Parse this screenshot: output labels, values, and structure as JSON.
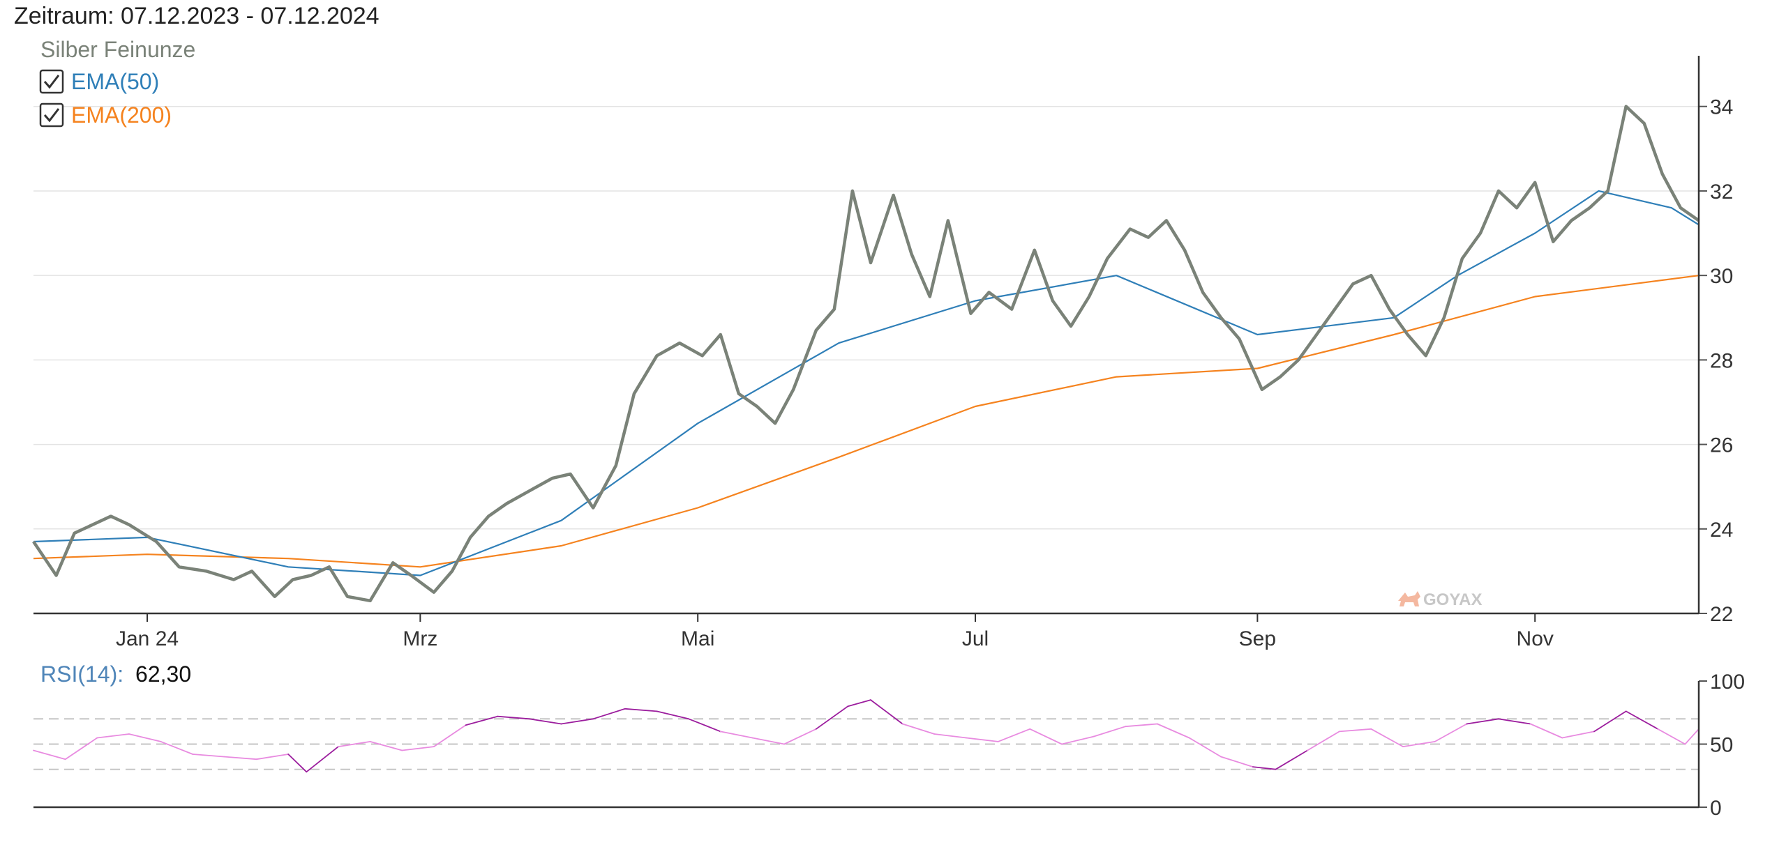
{
  "header": {
    "zeitraum_label": "Zeitraum:",
    "zeitraum_value": "07.12.2023 - 07.12.2024"
  },
  "legend": {
    "series_label": "Silber Feinunze",
    "items": [
      {
        "label": "EMA(50)",
        "checked": true,
        "color": "#2f7fb8"
      },
      {
        "label": "EMA(200)",
        "checked": true,
        "color": "#f5831f"
      }
    ]
  },
  "watermark": "GOYAX",
  "rsi": {
    "label": "RSI(14):",
    "value": "62,30",
    "color": "#e88be0",
    "extreme_color": "#9c1e9e"
  },
  "colors": {
    "price": "#7a8278",
    "ema50": "#2f7fb8",
    "ema200": "#f5831f",
    "grid": "#e3e3e3",
    "axis": "#555555"
  },
  "chart_data": [
    {
      "type": "line",
      "title": "Silber Feinunze",
      "x_ticks": [
        "Jan 24",
        "Mrz",
        "Mai",
        "Jul",
        "Sep",
        "Nov"
      ],
      "x_tick_dates": [
        "2024-01-01",
        "2024-03-01",
        "2024-05-01",
        "2024-07-01",
        "2024-09-01",
        "2024-11-01"
      ],
      "xlim": [
        "2023-12-07",
        "2024-12-07"
      ],
      "ylim": [
        22,
        35.2
      ],
      "y_ticks": [
        22,
        24,
        26,
        28,
        30,
        32,
        34
      ],
      "grid": true,
      "y_axis_side": "right",
      "series": [
        {
          "name": "Silber Feinunze",
          "points": [
            [
              "2023-12-07",
              23.7
            ],
            [
              "2023-12-12",
              22.9
            ],
            [
              "2023-12-16",
              23.9
            ],
            [
              "2023-12-20",
              24.1
            ],
            [
              "2023-12-24",
              24.3
            ],
            [
              "2023-12-28",
              24.1
            ],
            [
              "2024-01-03",
              23.7
            ],
            [
              "2024-01-08",
              23.1
            ],
            [
              "2024-01-14",
              23.0
            ],
            [
              "2024-01-20",
              22.8
            ],
            [
              "2024-01-24",
              23.0
            ],
            [
              "2024-01-29",
              22.4
            ],
            [
              "2024-02-02",
              22.8
            ],
            [
              "2024-02-06",
              22.9
            ],
            [
              "2024-02-10",
              23.1
            ],
            [
              "2024-02-14",
              22.4
            ],
            [
              "2024-02-19",
              22.3
            ],
            [
              "2024-02-24",
              23.2
            ],
            [
              "2024-02-28",
              22.9
            ],
            [
              "2024-03-04",
              22.5
            ],
            [
              "2024-03-08",
              23.0
            ],
            [
              "2024-03-12",
              23.8
            ],
            [
              "2024-03-16",
              24.3
            ],
            [
              "2024-03-20",
              24.6
            ],
            [
              "2024-03-25",
              24.9
            ],
            [
              "2024-03-30",
              25.2
            ],
            [
              "2024-04-03",
              25.3
            ],
            [
              "2024-04-08",
              24.5
            ],
            [
              "2024-04-13",
              25.5
            ],
            [
              "2024-04-17",
              27.2
            ],
            [
              "2024-04-22",
              28.1
            ],
            [
              "2024-04-27",
              28.4
            ],
            [
              "2024-05-02",
              28.1
            ],
            [
              "2024-05-06",
              28.6
            ],
            [
              "2024-05-10",
              27.2
            ],
            [
              "2024-05-14",
              26.9
            ],
            [
              "2024-05-18",
              26.5
            ],
            [
              "2024-05-22",
              27.3
            ],
            [
              "2024-05-27",
              28.7
            ],
            [
              "2024-05-31",
              29.2
            ],
            [
              "2024-06-04",
              32.0
            ],
            [
              "2024-06-08",
              30.3
            ],
            [
              "2024-06-13",
              31.9
            ],
            [
              "2024-06-17",
              30.5
            ],
            [
              "2024-06-21",
              29.5
            ],
            [
              "2024-06-25",
              31.3
            ],
            [
              "2024-06-30",
              29.1
            ],
            [
              "2024-07-04",
              29.6
            ],
            [
              "2024-07-09",
              29.2
            ],
            [
              "2024-07-14",
              30.6
            ],
            [
              "2024-07-18",
              29.4
            ],
            [
              "2024-07-22",
              28.8
            ],
            [
              "2024-07-26",
              29.5
            ],
            [
              "2024-07-30",
              30.4
            ],
            [
              "2024-08-04",
              31.1
            ],
            [
              "2024-08-08",
              30.9
            ],
            [
              "2024-08-12",
              31.3
            ],
            [
              "2024-08-16",
              30.6
            ],
            [
              "2024-08-20",
              29.6
            ],
            [
              "2024-08-24",
              29.0
            ],
            [
              "2024-08-28",
              28.5
            ],
            [
              "2024-09-02",
              27.3
            ],
            [
              "2024-09-06",
              27.6
            ],
            [
              "2024-09-10",
              28.0
            ],
            [
              "2024-09-14",
              28.6
            ],
            [
              "2024-09-18",
              29.2
            ],
            [
              "2024-09-22",
              29.8
            ],
            [
              "2024-09-26",
              30.0
            ],
            [
              "2024-09-30",
              29.2
            ],
            [
              "2024-10-04",
              28.6
            ],
            [
              "2024-10-08",
              28.1
            ],
            [
              "2024-10-12",
              29.0
            ],
            [
              "2024-10-16",
              30.4
            ],
            [
              "2024-10-20",
              31.0
            ],
            [
              "2024-10-24",
              32.0
            ],
            [
              "2024-10-28",
              31.6
            ],
            [
              "2024-11-01",
              32.2
            ],
            [
              "2024-11-05",
              30.8
            ],
            [
              "2024-11-09",
              31.3
            ],
            [
              "2024-11-13",
              31.6
            ],
            [
              "2024-11-17",
              32.0
            ],
            [
              "2024-11-21",
              34.0
            ],
            [
              "2024-11-25",
              33.6
            ],
            [
              "2024-11-29",
              32.4
            ],
            [
              "2024-12-03",
              31.6
            ],
            [
              "2024-12-07",
              31.3
            ]
          ]
        },
        {
          "name": "EMA(50)",
          "points": [
            [
              "2023-12-07",
              23.7
            ],
            [
              "2024-01-01",
              23.8
            ],
            [
              "2024-02-01",
              23.1
            ],
            [
              "2024-03-01",
              22.9
            ],
            [
              "2024-04-01",
              24.2
            ],
            [
              "2024-05-01",
              26.5
            ],
            [
              "2024-06-01",
              28.4
            ],
            [
              "2024-07-01",
              29.4
            ],
            [
              "2024-08-01",
              30.0
            ],
            [
              "2024-09-01",
              28.6
            ],
            [
              "2024-10-01",
              29.0
            ],
            [
              "2024-10-15",
              30.0
            ],
            [
              "2024-11-01",
              31.0
            ],
            [
              "2024-11-15",
              32.0
            ],
            [
              "2024-12-01",
              31.6
            ],
            [
              "2024-12-07",
              31.2
            ]
          ]
        },
        {
          "name": "EMA(200)",
          "points": [
            [
              "2023-12-07",
              23.3
            ],
            [
              "2024-01-01",
              23.4
            ],
            [
              "2024-02-01",
              23.3
            ],
            [
              "2024-03-01",
              23.1
            ],
            [
              "2024-04-01",
              23.6
            ],
            [
              "2024-05-01",
              24.5
            ],
            [
              "2024-06-01",
              25.7
            ],
            [
              "2024-07-01",
              26.9
            ],
            [
              "2024-08-01",
              27.6
            ],
            [
              "2024-09-01",
              27.8
            ],
            [
              "2024-10-01",
              28.6
            ],
            [
              "2024-11-01",
              29.5
            ],
            [
              "2024-12-07",
              30.0
            ]
          ]
        }
      ]
    },
    {
      "type": "line",
      "title": "RSI(14): 62,30",
      "xlim": [
        "2023-12-07",
        "2024-12-07"
      ],
      "ylim": [
        0,
        100
      ],
      "y_ticks": [
        0,
        50,
        100
      ],
      "reference_lines": [
        30,
        50,
        70
      ],
      "y_axis_side": "right",
      "series": [
        {
          "name": "RSI(14)",
          "points": [
            [
              "2023-12-07",
              45
            ],
            [
              "2023-12-14",
              38
            ],
            [
              "2023-12-21",
              55
            ],
            [
              "2023-12-28",
              58
            ],
            [
              "2024-01-04",
              52
            ],
            [
              "2024-01-11",
              42
            ],
            [
              "2024-01-18",
              40
            ],
            [
              "2024-01-25",
              38
            ],
            [
              "2024-02-01",
              42
            ],
            [
              "2024-02-05",
              28
            ],
            [
              "2024-02-12",
              48
            ],
            [
              "2024-02-19",
              52
            ],
            [
              "2024-02-26",
              45
            ],
            [
              "2024-03-04",
              48
            ],
            [
              "2024-03-11",
              65
            ],
            [
              "2024-03-18",
              72
            ],
            [
              "2024-03-25",
              70
            ],
            [
              "2024-04-01",
              66
            ],
            [
              "2024-04-08",
              70
            ],
            [
              "2024-04-15",
              78
            ],
            [
              "2024-04-22",
              76
            ],
            [
              "2024-04-29",
              70
            ],
            [
              "2024-05-06",
              60
            ],
            [
              "2024-05-13",
              55
            ],
            [
              "2024-05-20",
              50
            ],
            [
              "2024-05-27",
              62
            ],
            [
              "2024-06-03",
              80
            ],
            [
              "2024-06-08",
              85
            ],
            [
              "2024-06-15",
              66
            ],
            [
              "2024-06-22",
              58
            ],
            [
              "2024-06-29",
              55
            ],
            [
              "2024-07-06",
              52
            ],
            [
              "2024-07-13",
              62
            ],
            [
              "2024-07-20",
              50
            ],
            [
              "2024-07-27",
              56
            ],
            [
              "2024-08-03",
              64
            ],
            [
              "2024-08-10",
              66
            ],
            [
              "2024-08-17",
              55
            ],
            [
              "2024-08-24",
              40
            ],
            [
              "2024-08-31",
              32
            ],
            [
              "2024-09-05",
              30
            ],
            [
              "2024-09-12",
              45
            ],
            [
              "2024-09-19",
              60
            ],
            [
              "2024-09-26",
              62
            ],
            [
              "2024-10-03",
              48
            ],
            [
              "2024-10-10",
              52
            ],
            [
              "2024-10-17",
              66
            ],
            [
              "2024-10-24",
              70
            ],
            [
              "2024-10-31",
              66
            ],
            [
              "2024-11-07",
              55
            ],
            [
              "2024-11-14",
              60
            ],
            [
              "2024-11-21",
              76
            ],
            [
              "2024-11-28",
              62
            ],
            [
              "2024-12-04",
              50
            ],
            [
              "2024-12-07",
              62
            ]
          ]
        }
      ]
    }
  ]
}
